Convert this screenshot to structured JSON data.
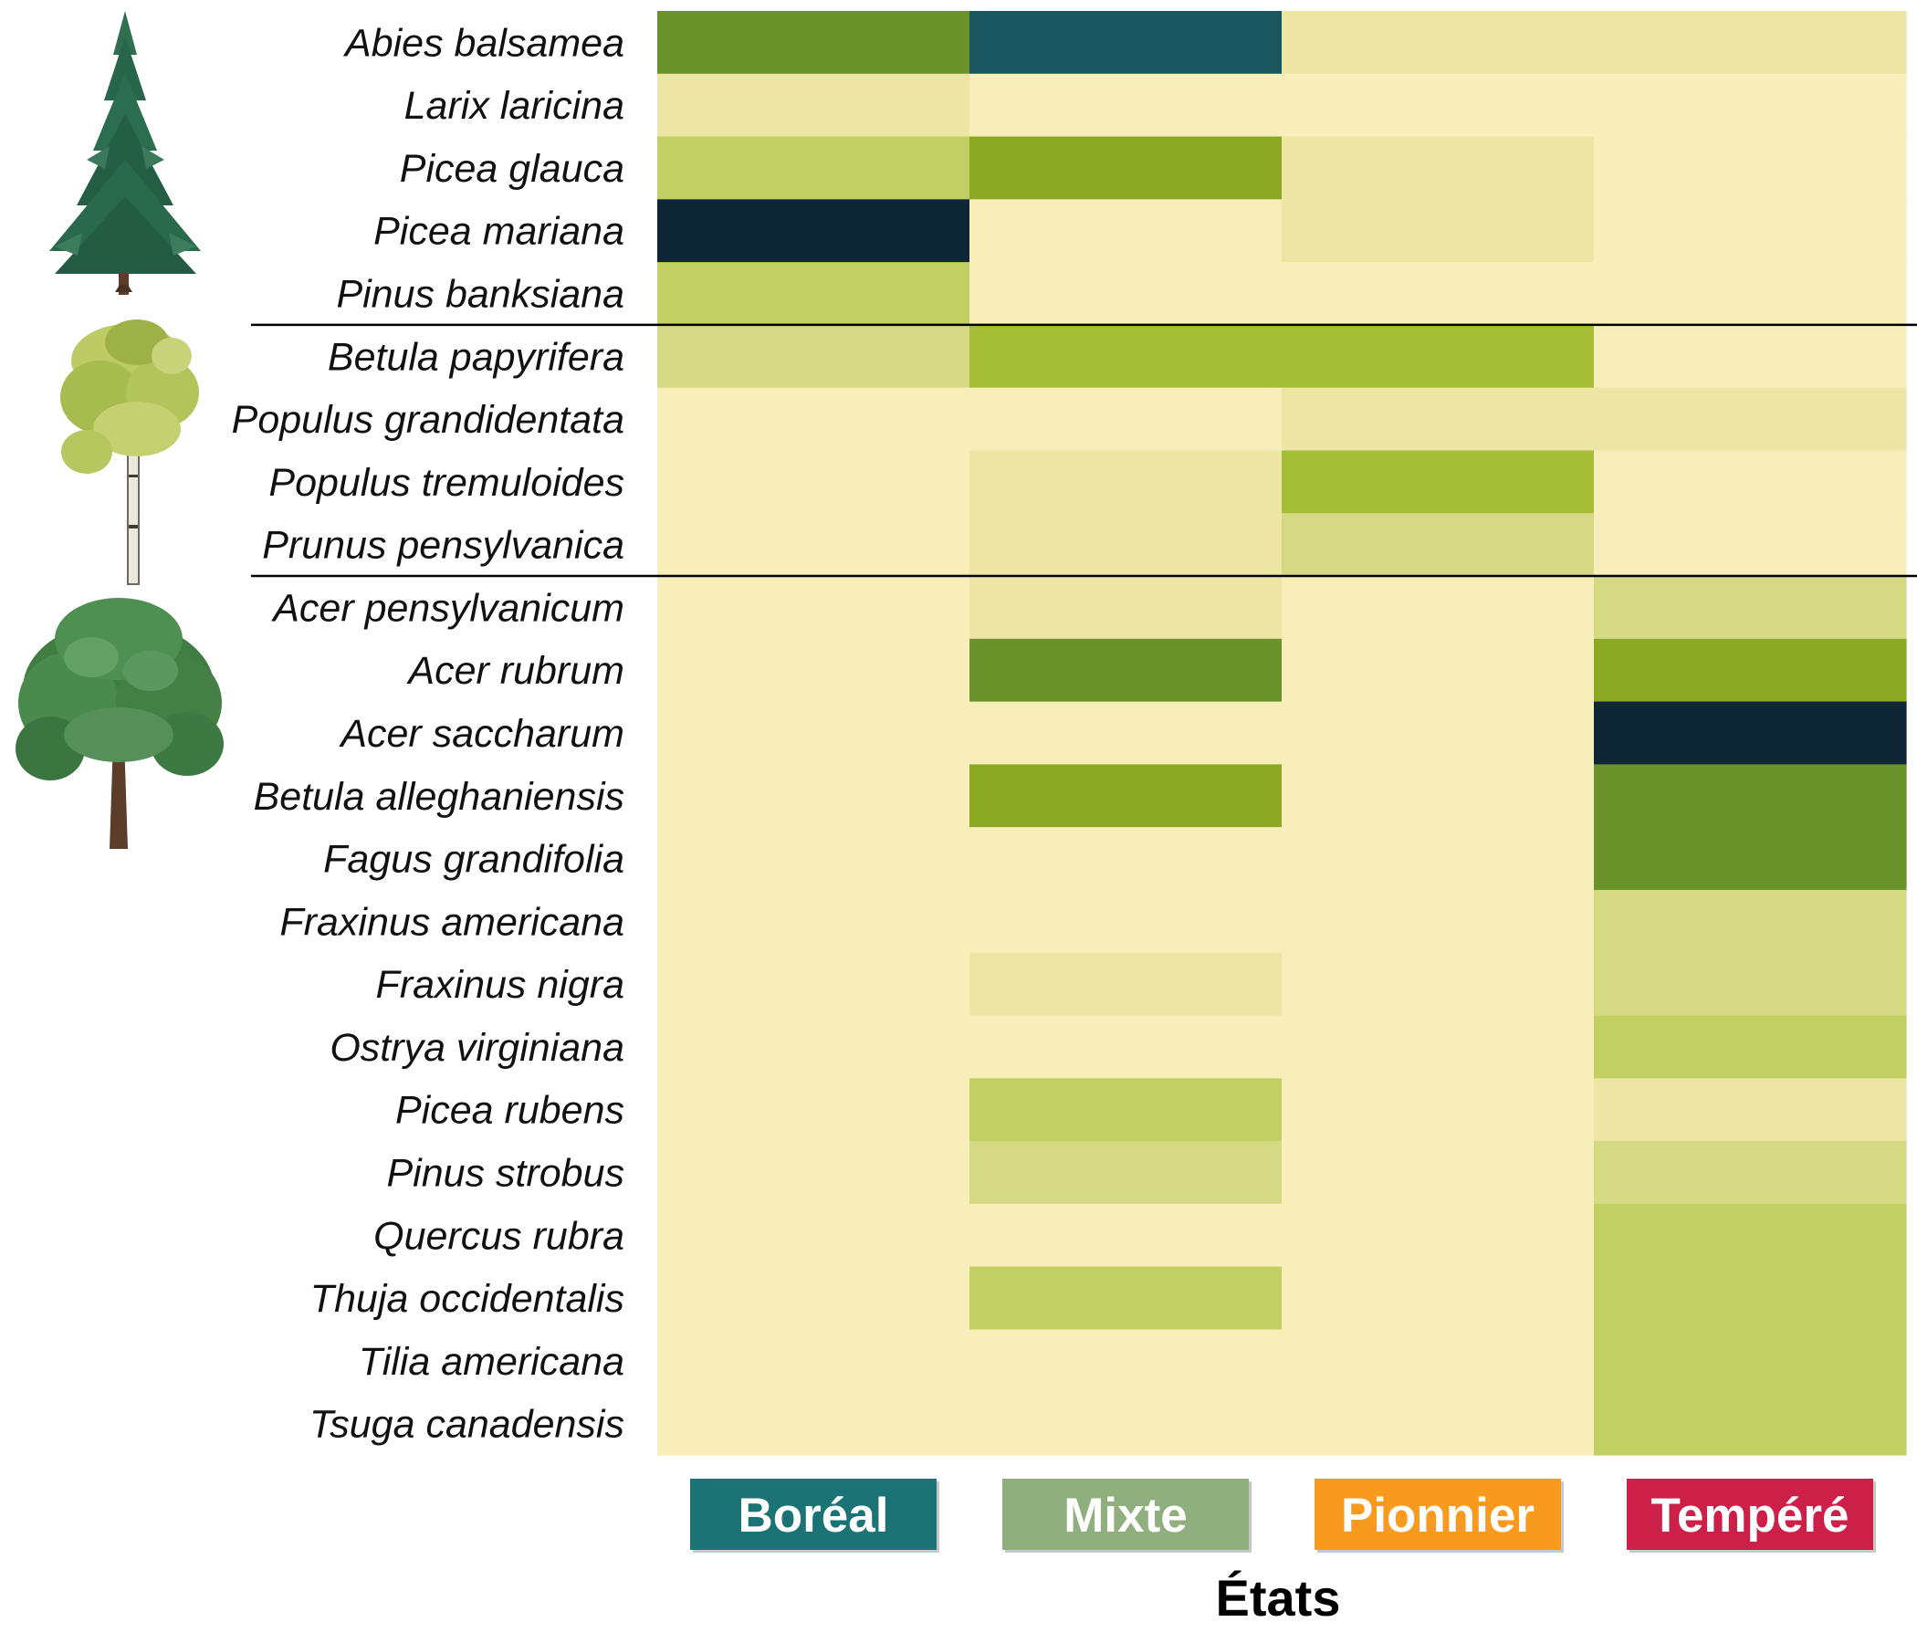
{
  "chart_data": {
    "type": "heatmap",
    "xlabel": "États",
    "categories": [
      "Boréal",
      "Mixte",
      "Pionnier",
      "Tempéré"
    ],
    "category_colors": [
      "#1c7375",
      "#8fb07e",
      "#f79a1e",
      "#cc2049"
    ],
    "species": [
      "Abies balsamea",
      "Larix laricina",
      "Picea glauca",
      "Picea mariana",
      "Pinus banksiana",
      "Betula papyrifera",
      "Populus grandidentata",
      "Populus tremuloides",
      "Prunus pensylvanica",
      "Acer pensylvanicum",
      "Acer rubrum",
      "Acer saccharum",
      "Betula alleghaniensis",
      "Fagus grandifolia",
      "Fraxinus americana",
      "Fraxinus nigra",
      "Ostrya virginiana",
      "Picea rubens",
      "Pinus strobus",
      "Quercus rubra",
      "Thuja occidentalis",
      "Tilia americana",
      "Tsuga canadensis"
    ],
    "groups": [
      {
        "icon": "conifer-tree-icon",
        "start": 0,
        "end": 4
      },
      {
        "icon": "pioneer-tree-icon",
        "start": 5,
        "end": 8
      },
      {
        "icon": "broadleaf-tree-icon",
        "start": 9,
        "end": 22
      }
    ],
    "value_range": [
      0,
      1
    ],
    "color_scale": [
      "#f8eeb9",
      "#ede5a4",
      "#d5d983",
      "#c2cf62",
      "#a7be38",
      "#8aa822",
      "#69922b",
      "#5a8634",
      "#1a5660",
      "#0e2636"
    ],
    "values": [
      [
        0.69,
        0.88,
        0.1,
        0.1
      ],
      [
        0.1,
        0.0,
        0.0,
        0.0
      ],
      [
        0.32,
        0.6,
        0.1,
        0.0
      ],
      [
        1.0,
        0.0,
        0.1,
        0.0
      ],
      [
        0.38,
        0.0,
        0.0,
        0.0
      ],
      [
        0.2,
        0.48,
        0.48,
        0.0
      ],
      [
        0.0,
        0.0,
        0.1,
        0.1
      ],
      [
        0.0,
        0.1,
        0.43,
        0.0
      ],
      [
        0.0,
        0.1,
        0.2,
        0.0
      ],
      [
        0.0,
        0.1,
        0.0,
        0.2
      ],
      [
        0.0,
        0.62,
        0.0,
        0.52
      ],
      [
        0.0,
        0.0,
        0.0,
        1.0
      ],
      [
        0.0,
        0.52,
        0.0,
        0.69
      ],
      [
        0.0,
        0.0,
        0.0,
        0.62
      ],
      [
        0.0,
        0.0,
        0.0,
        0.2
      ],
      [
        0.0,
        0.1,
        0.0,
        0.2
      ],
      [
        0.0,
        0.0,
        0.0,
        0.38
      ],
      [
        0.0,
        0.32,
        0.0,
        0.1
      ],
      [
        0.0,
        0.2,
        0.0,
        0.2
      ],
      [
        0.0,
        0.0,
        0.0,
        0.32
      ],
      [
        0.0,
        0.38,
        0.0,
        0.32
      ],
      [
        0.0,
        0.0,
        0.0,
        0.32
      ],
      [
        0.0,
        0.0,
        0.0,
        0.38
      ]
    ]
  }
}
